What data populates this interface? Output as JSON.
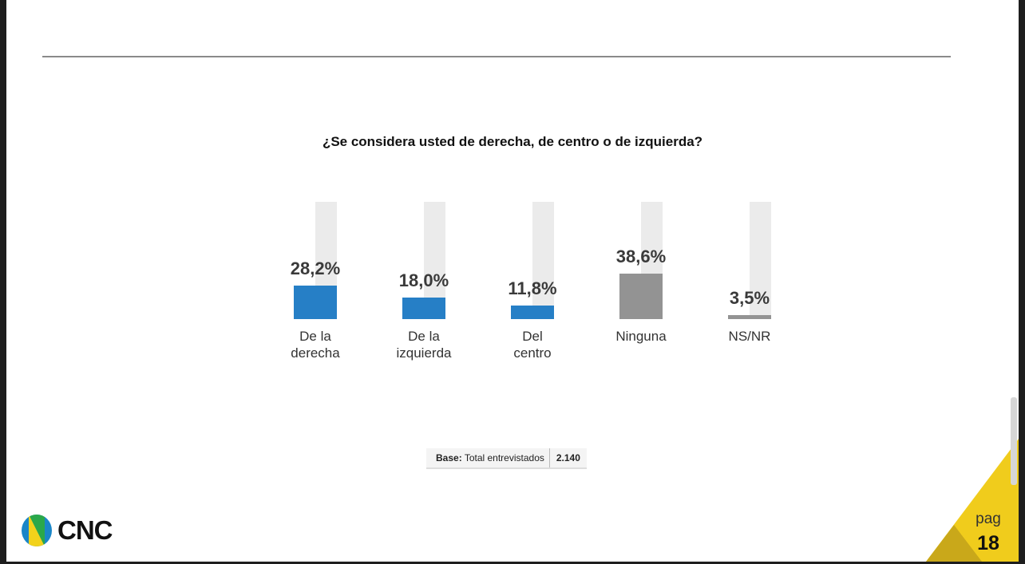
{
  "chart_data": {
    "type": "bar",
    "title": "¿Se considera usted de derecha, de centro o de izquierda?",
    "categories": [
      [
        "De la",
        "derecha"
      ],
      [
        "De la",
        "izquierda"
      ],
      [
        "Del",
        "centro"
      ],
      [
        "Ninguna"
      ],
      [
        "NS/NR"
      ]
    ],
    "values": [
      28.2,
      18.0,
      11.8,
      38.6,
      3.5
    ],
    "value_labels": [
      "28,2%",
      "18,0%",
      "11,8%",
      "38,6%",
      "3,5%"
    ],
    "colors": [
      "#1f7bc4",
      "#1f7bc4",
      "#1f7bc4",
      "#8f8f8f",
      "#8f8f8f"
    ],
    "ylim": [
      0,
      100
    ],
    "xlabel": "",
    "ylabel": "",
    "grid": false
  },
  "base": {
    "label": "Base:",
    "text": "Total entrevistados",
    "value": "2.140"
  },
  "logo": {
    "text": "CNC"
  },
  "page": {
    "label": "pag",
    "number": "18"
  }
}
